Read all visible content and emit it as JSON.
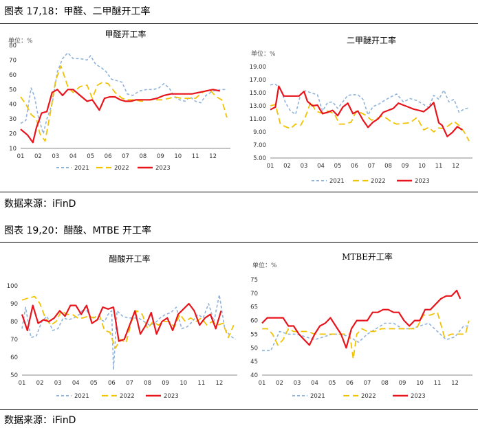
{
  "sections": [
    {
      "title": "图表 17,18：甲醛、二甲醚开工率",
      "source": "数据来源：iFinD"
    },
    {
      "title": "图表 19,20：醋酸、MTBE 开工率",
      "source": "数据来源：iFinD"
    }
  ],
  "colors": {
    "s2021": "#8FB3DA",
    "s2022": "#F2C200",
    "s2023": "#E8141B"
  },
  "chart_data": [
    {
      "type": "line",
      "title": "甲醛开工率",
      "unit_label": "单位：%",
      "ylim": [
        10,
        80
      ],
      "yticks": [
        "10",
        "20",
        "30",
        "40",
        "50",
        "60",
        "70",
        "80"
      ],
      "xticks": [
        "01",
        "02",
        "03",
        "04",
        "05",
        "06",
        "07",
        "08",
        "09",
        "10",
        "11",
        "12"
      ],
      "legend": [
        "2021",
        "2022",
        "2023"
      ],
      "series": [
        {
          "name": "2021",
          "x": [
            1,
            1.3,
            1.6,
            1.8,
            2.0,
            2.3,
            2.5,
            2.8,
            3.1,
            3.4,
            3.7,
            4.0,
            4.4,
            4.8,
            5.0,
            5.3,
            5.6,
            5.9,
            6.2,
            6.5,
            6.8,
            7.1,
            7.4,
            7.8,
            8.2,
            8.6,
            8.9,
            9.2,
            9.5,
            9.8,
            10.1,
            10.4,
            10.7,
            11.0,
            11.3,
            11.6,
            12.0,
            12.5,
            12.8
          ],
          "values": [
            27,
            29,
            51,
            45,
            32,
            20,
            30,
            40,
            62,
            71,
            75,
            71,
            71,
            70,
            73,
            67,
            65,
            62,
            57,
            56,
            55,
            47,
            46,
            49,
            50,
            50,
            51,
            54,
            51,
            45,
            43,
            42,
            45,
            42,
            41,
            46,
            49,
            50,
            50
          ]
        },
        {
          "name": "2022",
          "x": [
            1,
            1.3,
            1.6,
            1.9,
            2.1,
            2.4,
            2.7,
            3.0,
            3.3,
            3.7,
            4.0,
            4.4,
            4.8,
            5.1,
            5.4,
            5.7,
            6.0,
            6.4,
            6.8,
            7.1,
            7.5,
            7.9,
            8.3,
            8.7,
            9.1,
            9.5,
            9.8,
            10.2,
            10.6,
            11.0,
            11.4,
            11.8,
            12.2,
            12.5,
            12.8
          ],
          "values": [
            45,
            40,
            33,
            30,
            20,
            15,
            34,
            56,
            66,
            52,
            48,
            52,
            53,
            44,
            53,
            55,
            54,
            48,
            44,
            43,
            43,
            42,
            43,
            43,
            43,
            44,
            45,
            44,
            44,
            44,
            48,
            50,
            45,
            43,
            31
          ]
        },
        {
          "name": "2023",
          "x": [
            1,
            1.4,
            1.7,
            1.9,
            2.2,
            2.5,
            2.8,
            3.1,
            3.4,
            3.7,
            4.0,
            4.4,
            4.8,
            5.1,
            5.5,
            5.8,
            6.1,
            6.4,
            6.7,
            7.0,
            7.3,
            7.6,
            8.0,
            8.4,
            8.8,
            9.2,
            9.6,
            10.0,
            10.4,
            10.8,
            11.2,
            11.6,
            12.0,
            12.4
          ],
          "values": [
            23,
            19,
            14,
            24,
            34,
            35,
            48,
            50,
            46,
            50,
            50,
            46,
            42,
            43,
            36,
            44,
            45,
            45,
            43,
            42,
            42,
            43,
            43,
            43,
            44,
            46,
            47,
            47,
            47,
            47,
            48,
            49,
            50,
            49
          ]
        }
      ]
    },
    {
      "type": "line",
      "title": "二甲醚开工率",
      "unit_label": "单位：%",
      "ylim": [
        5,
        19
      ],
      "yticks": [
        "5.00",
        "7.00",
        "9.00",
        "11.00",
        "13.00",
        "15.00",
        "17.00",
        "19.00"
      ],
      "xticks": [
        "01",
        "02",
        "03",
        "04",
        "05",
        "06",
        "07",
        "08",
        "09",
        "10",
        "11",
        "12"
      ],
      "legend": [
        "2021",
        "2022",
        "2023"
      ],
      "series": [
        {
          "name": "2021",
          "x": [
            1,
            1.3,
            1.6,
            1.9,
            2.2,
            2.5,
            2.8,
            3.1,
            3.4,
            3.8,
            4.1,
            4.4,
            4.7,
            5.0,
            5.3,
            5.6,
            5.9,
            6.2,
            6.5,
            6.8,
            7.1,
            7.4,
            7.7,
            8.1,
            8.5,
            8.9,
            9.3,
            9.7,
            10.1,
            10.4,
            10.7,
            11.0,
            11.3,
            11.6,
            11.9,
            12.2,
            12.5,
            12.8
          ],
          "values": [
            16.2,
            16.3,
            15.7,
            13.5,
            12.2,
            11.7,
            14.8,
            15.3,
            15.0,
            14.7,
            12.2,
            13.5,
            13.6,
            12.6,
            13.6,
            14.6,
            14.7,
            14.7,
            14.0,
            11.6,
            12.9,
            13.2,
            13.7,
            14.3,
            14.8,
            13.6,
            14.1,
            13.8,
            13.2,
            12.7,
            14.6,
            14.0,
            15.4,
            13.6,
            14.0,
            12.0,
            12.5,
            12.7
          ]
        },
        {
          "name": "2022",
          "x": [
            1,
            1.3,
            1.6,
            1.9,
            2.2,
            2.5,
            2.8,
            3.1,
            3.4,
            3.7,
            4.0,
            4.4,
            4.8,
            5.1,
            5.4,
            5.8,
            6.1,
            6.4,
            6.7,
            7.0,
            7.3,
            7.6,
            7.9,
            8.2,
            8.5,
            8.9,
            9.3,
            9.7,
            10.1,
            10.4,
            10.7,
            11.0,
            11.3,
            11.6,
            11.9,
            12.2,
            12.5,
            12.8
          ],
          "values": [
            13.0,
            13.2,
            10.2,
            9.8,
            9.5,
            10.2,
            10.0,
            11.4,
            13.6,
            12.2,
            11.9,
            12.2,
            11.8,
            10.2,
            10.2,
            10.5,
            12.2,
            11.9,
            11.5,
            10.8,
            11.0,
            11.4,
            11.1,
            10.5,
            10.2,
            10.3,
            10.4,
            11.2,
            9.3,
            9.7,
            9.0,
            9.6,
            9.5,
            10.0,
            10.6,
            10.0,
            9.0,
            7.6
          ]
        },
        {
          "name": "2023",
          "x": [
            1,
            1.3,
            1.5,
            1.8,
            2.1,
            2.4,
            2.7,
            3.0,
            3.2,
            3.5,
            3.8,
            4.1,
            4.4,
            4.7,
            5.0,
            5.3,
            5.6,
            5.9,
            6.2,
            6.5,
            6.8,
            7.1,
            7.4,
            7.7,
            8.0,
            8.3,
            8.6,
            8.9,
            9.2,
            9.5,
            9.8,
            10.1,
            10.4,
            10.7,
            11.0,
            11.2,
            11.5,
            11.8,
            12.1,
            12.4
          ],
          "values": [
            12.4,
            12.8,
            16.0,
            14.5,
            14.5,
            14.5,
            14.5,
            15.2,
            13.7,
            13.0,
            13.1,
            11.8,
            12.0,
            12.3,
            11.5,
            12.8,
            13.4,
            11.8,
            12.2,
            10.8,
            9.7,
            10.5,
            11.0,
            12.0,
            12.3,
            12.6,
            13.4,
            13.1,
            12.8,
            12.5,
            12.3,
            12.1,
            12.7,
            13.5,
            10.4,
            10.0,
            8.3,
            8.9,
            9.8,
            9.3
          ]
        }
      ]
    },
    {
      "type": "line",
      "title": "醋酸开工率",
      "unit_label": "",
      "ylim": [
        50,
        100
      ],
      "yticks": [
        "50",
        "60",
        "70",
        "80",
        "90",
        "100"
      ],
      "xticks": [
        "01",
        "02",
        "03",
        "04",
        "05",
        "06",
        "07",
        "08",
        "09",
        "10",
        "11",
        "12"
      ],
      "legend": [
        "2021",
        "2022",
        "2023"
      ],
      "series": [
        {
          "name": "2021",
          "x": [
            1,
            1.2,
            1.5,
            1.8,
            2.1,
            2.4,
            2.7,
            3.0,
            3.3,
            3.6,
            3.9,
            4.2,
            4.5,
            4.8,
            5.1,
            5.4,
            5.6,
            5.8,
            6.0,
            6.1,
            6.3,
            6.6,
            6.9,
            7.2,
            7.5,
            7.8,
            8.1,
            8.4,
            8.7,
            9.0,
            9.3,
            9.6,
            9.9,
            10.2,
            10.5,
            10.8,
            11.1,
            11.4,
            11.7,
            12.0,
            12.3,
            12.6,
            12.9
          ],
          "values": [
            76,
            88,
            71,
            72,
            80,
            83,
            75,
            76,
            82,
            81,
            82,
            84,
            88,
            83,
            82,
            81,
            80,
            84,
            86,
            53,
            86,
            83,
            82,
            82,
            82,
            80,
            78,
            79,
            82,
            84,
            85,
            88,
            76,
            77,
            80,
            84,
            82,
            90,
            80,
            95,
            76,
            72,
            70
          ]
        },
        {
          "name": "2022",
          "x": [
            1,
            1.3,
            1.7,
            2.0,
            2.3,
            2.6,
            2.9,
            3.2,
            3.5,
            3.8,
            4.1,
            4.4,
            4.7,
            5.0,
            5.3,
            5.6,
            5.9,
            6.2,
            6.5,
            6.8,
            7.1,
            7.4,
            7.7,
            8.0,
            8.3,
            8.6,
            8.9,
            9.2,
            9.5,
            9.8,
            10.1,
            10.4,
            10.7,
            11.0,
            11.3,
            11.6,
            11.9,
            12.2,
            12.5,
            12.8
          ],
          "values": [
            92,
            93,
            94,
            90,
            82,
            78,
            80,
            86,
            84,
            84,
            82,
            82,
            83,
            82,
            84,
            75,
            74,
            65,
            70,
            68,
            80,
            86,
            84,
            76,
            80,
            78,
            80,
            80,
            77,
            84,
            80,
            82,
            80,
            82,
            78,
            80,
            78,
            79,
            71,
            78
          ]
        },
        {
          "name": "2023",
          "x": [
            1,
            1.3,
            1.6,
            1.9,
            2.2,
            2.5,
            2.8,
            3.1,
            3.4,
            3.7,
            4.0,
            4.3,
            4.6,
            4.9,
            5.2,
            5.5,
            5.8,
            6.1,
            6.4,
            6.7,
            7.0,
            7.3,
            7.6,
            7.9,
            8.2,
            8.5,
            8.8,
            9.1,
            9.4,
            9.7,
            10.0,
            10.3,
            10.6,
            10.9,
            11.2,
            11.5,
            11.8,
            12.1
          ],
          "values": [
            84,
            75,
            89,
            79,
            81,
            80,
            82,
            86,
            83,
            89,
            89,
            84,
            89,
            79,
            81,
            88,
            87,
            88,
            69,
            70,
            78,
            86,
            73,
            78,
            85,
            73,
            80,
            82,
            75,
            84,
            87,
            90,
            86,
            78,
            82,
            84,
            76,
            86
          ]
        }
      ]
    },
    {
      "type": "line",
      "title": "MTBE开工率",
      "unit_label": "单位：%",
      "ylim": [
        40,
        75
      ],
      "yticks": [
        "40",
        "45",
        "50",
        "55",
        "60",
        "65",
        "70",
        "75"
      ],
      "xticks": [
        "01",
        "02",
        "03",
        "04",
        "05",
        "06",
        "07",
        "08",
        "09",
        "10",
        "11",
        "12"
      ],
      "legend": [
        "2021",
        "2022",
        "2023"
      ],
      "series": [
        {
          "name": "2021",
          "x": [
            1,
            1.5,
            2.0,
            2.5,
            3.0,
            3.5,
            4.0,
            4.5,
            5.0,
            5.5,
            6.0,
            6.5,
            7.0,
            7.5,
            8.0,
            8.5,
            9.0,
            9.5,
            10.0,
            10.5,
            11.0,
            11.5,
            12.0,
            12.5,
            12.8
          ],
          "values": [
            49,
            49,
            56,
            55,
            55,
            54,
            53,
            54,
            55,
            55,
            54,
            52,
            55,
            57,
            59,
            59,
            57,
            57,
            58,
            59,
            56,
            53,
            54,
            58,
            58
          ]
        },
        {
          "name": "2022",
          "x": [
            1,
            1.3,
            1.6,
            1.9,
            2.2,
            2.5,
            2.8,
            3.2,
            3.6,
            4.0,
            4.4,
            4.8,
            5.2,
            5.6,
            6.0,
            6.2,
            6.4,
            6.7,
            7.0,
            7.4,
            7.8,
            8.2,
            8.6,
            9.0,
            9.4,
            9.8,
            10.2,
            10.6,
            11.0,
            11.4,
            11.8,
            12.2,
            12.6,
            12.8
          ],
          "values": [
            57,
            57,
            55,
            51,
            53,
            57,
            56,
            56,
            56,
            55,
            55,
            55,
            55,
            55,
            55,
            46,
            55,
            57,
            56,
            56,
            57,
            57,
            57,
            57,
            57,
            57,
            62,
            62,
            63,
            54,
            55,
            55,
            55,
            60
          ]
        },
        {
          "name": "2023",
          "x": [
            1,
            1.3,
            1.6,
            1.9,
            2.2,
            2.5,
            2.8,
            3.1,
            3.4,
            3.7,
            4.0,
            4.3,
            4.6,
            4.9,
            5.2,
            5.5,
            5.8,
            6.1,
            6.4,
            6.7,
            7.0,
            7.3,
            7.6,
            7.9,
            8.2,
            8.5,
            8.8,
            9.1,
            9.4,
            9.7,
            10.0,
            10.3,
            10.6,
            10.9,
            11.2,
            11.5,
            11.8,
            12.1,
            12.3
          ],
          "values": [
            59,
            61,
            61,
            61,
            61,
            58,
            58,
            55,
            53,
            51,
            55,
            58,
            59,
            61,
            58,
            55,
            50,
            57,
            60,
            60,
            60,
            63,
            63,
            64,
            64,
            63,
            63,
            60,
            58,
            60,
            60,
            64,
            64,
            66,
            68,
            69,
            69,
            71,
            68
          ]
        }
      ]
    }
  ]
}
